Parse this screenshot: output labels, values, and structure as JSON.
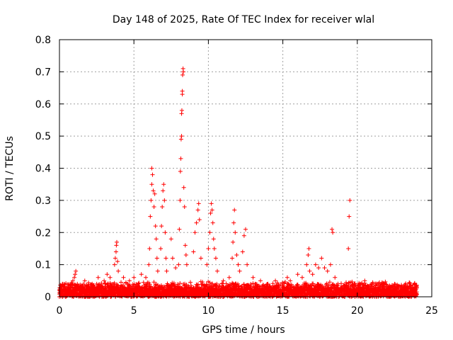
{
  "chart_data": {
    "type": "scatter",
    "title": "Day 148 of 2025, Rate Of TEC Index for receiver wlal",
    "xlabel": "GPS time / hours",
    "ylabel": "ROTI / TECUs",
    "xlim": [
      0,
      25
    ],
    "ylim": [
      0,
      0.8
    ],
    "xticks": [
      0,
      5,
      10,
      15,
      20,
      25
    ],
    "yticks": [
      0,
      0.1,
      0.2,
      0.3,
      0.4,
      0.5,
      0.6,
      0.7,
      0.8
    ],
    "grid": true,
    "marker": "+",
    "color": "#ff0000",
    "baseline_band": {
      "x_range": [
        0,
        24
      ],
      "typical_max": 0.04
    },
    "series": [
      {
        "name": "ROTI",
        "points": [
          [
            0.1,
            0.03
          ],
          [
            0.2,
            0.04
          ],
          [
            0.4,
            0.02
          ],
          [
            0.6,
            0.03
          ],
          [
            0.9,
            0.05
          ],
          [
            1.0,
            0.06
          ],
          [
            1.05,
            0.07
          ],
          [
            1.1,
            0.08
          ],
          [
            1.2,
            0.04
          ],
          [
            1.6,
            0.03
          ],
          [
            1.7,
            0.05
          ],
          [
            2.2,
            0.03
          ],
          [
            2.5,
            0.04
          ],
          [
            2.6,
            0.06
          ],
          [
            3.0,
            0.05
          ],
          [
            3.2,
            0.07
          ],
          [
            3.4,
            0.06
          ],
          [
            3.7,
            0.1
          ],
          [
            3.75,
            0.12
          ],
          [
            3.8,
            0.14
          ],
          [
            3.82,
            0.16
          ],
          [
            3.85,
            0.17
          ],
          [
            3.9,
            0.11
          ],
          [
            3.95,
            0.08
          ],
          [
            4.3,
            0.06
          ],
          [
            4.7,
            0.05
          ],
          [
            5.0,
            0.06
          ],
          [
            5.5,
            0.07
          ],
          [
            5.8,
            0.06
          ],
          [
            6.0,
            0.1
          ],
          [
            6.05,
            0.15
          ],
          [
            6.1,
            0.25
          ],
          [
            6.15,
            0.3
          ],
          [
            6.2,
            0.35
          ],
          [
            6.2,
            0.4
          ],
          [
            6.25,
            0.38
          ],
          [
            6.3,
            0.33
          ],
          [
            6.35,
            0.28
          ],
          [
            6.4,
            0.32
          ],
          [
            6.45,
            0.22
          ],
          [
            6.5,
            0.18
          ],
          [
            6.55,
            0.12
          ],
          [
            6.6,
            0.08
          ],
          [
            6.8,
            0.15
          ],
          [
            6.85,
            0.22
          ],
          [
            6.9,
            0.28
          ],
          [
            6.95,
            0.33
          ],
          [
            7.0,
            0.35
          ],
          [
            7.05,
            0.3
          ],
          [
            7.1,
            0.2
          ],
          [
            7.15,
            0.12
          ],
          [
            7.2,
            0.08
          ],
          [
            7.5,
            0.18
          ],
          [
            7.6,
            0.12
          ],
          [
            7.8,
            0.09
          ],
          [
            8.0,
            0.1
          ],
          [
            8.05,
            0.21
          ],
          [
            8.1,
            0.3
          ],
          [
            8.12,
            0.39
          ],
          [
            8.15,
            0.43
          ],
          [
            8.17,
            0.49
          ],
          [
            8.2,
            0.5
          ],
          [
            8.2,
            0.57
          ],
          [
            8.22,
            0.58
          ],
          [
            8.25,
            0.63
          ],
          [
            8.25,
            0.64
          ],
          [
            8.27,
            0.69
          ],
          [
            8.3,
            0.71
          ],
          [
            8.32,
            0.7
          ],
          [
            8.35,
            0.34
          ],
          [
            8.4,
            0.28
          ],
          [
            8.45,
            0.16
          ],
          [
            8.5,
            0.13
          ],
          [
            8.55,
            0.1
          ],
          [
            9.0,
            0.14
          ],
          [
            9.1,
            0.2
          ],
          [
            9.2,
            0.23
          ],
          [
            9.3,
            0.27
          ],
          [
            9.35,
            0.29
          ],
          [
            9.4,
            0.24
          ],
          [
            9.5,
            0.12
          ],
          [
            9.9,
            0.1
          ],
          [
            10.0,
            0.15
          ],
          [
            10.1,
            0.2
          ],
          [
            10.15,
            0.26
          ],
          [
            10.2,
            0.29
          ],
          [
            10.25,
            0.27
          ],
          [
            10.3,
            0.23
          ],
          [
            10.35,
            0.18
          ],
          [
            10.4,
            0.15
          ],
          [
            10.5,
            0.12
          ],
          [
            10.6,
            0.08
          ],
          [
            11.0,
            0.05
          ],
          [
            11.4,
            0.06
          ],
          [
            11.6,
            0.12
          ],
          [
            11.65,
            0.17
          ],
          [
            11.7,
            0.23
          ],
          [
            11.75,
            0.27
          ],
          [
            11.8,
            0.2
          ],
          [
            11.9,
            0.13
          ],
          [
            12.0,
            0.1
          ],
          [
            12.1,
            0.08
          ],
          [
            12.3,
            0.14
          ],
          [
            12.4,
            0.19
          ],
          [
            12.5,
            0.21
          ],
          [
            12.6,
            0.1
          ],
          [
            13.0,
            0.06
          ],
          [
            13.5,
            0.05
          ],
          [
            14.0,
            0.04
          ],
          [
            14.5,
            0.05
          ],
          [
            15.0,
            0.04
          ],
          [
            15.3,
            0.06
          ],
          [
            15.5,
            0.05
          ],
          [
            16.0,
            0.07
          ],
          [
            16.3,
            0.06
          ],
          [
            16.6,
            0.1
          ],
          [
            16.7,
            0.13
          ],
          [
            16.75,
            0.15
          ],
          [
            16.8,
            0.08
          ],
          [
            17.0,
            0.07
          ],
          [
            17.2,
            0.1
          ],
          [
            17.4,
            0.09
          ],
          [
            17.6,
            0.12
          ],
          [
            17.8,
            0.09
          ],
          [
            18.0,
            0.08
          ],
          [
            18.2,
            0.1
          ],
          [
            18.3,
            0.21
          ],
          [
            18.35,
            0.2
          ],
          [
            18.5,
            0.06
          ],
          [
            19.4,
            0.15
          ],
          [
            19.45,
            0.25
          ],
          [
            19.5,
            0.3
          ],
          [
            19.8,
            0.04
          ],
          [
            20.5,
            0.05
          ],
          [
            21.0,
            0.04
          ],
          [
            21.8,
            0.04
          ],
          [
            22.5,
            0.04
          ],
          [
            23.0,
            0.03
          ],
          [
            23.5,
            0.04
          ],
          [
            24.0,
            0.03
          ]
        ]
      }
    ]
  }
}
